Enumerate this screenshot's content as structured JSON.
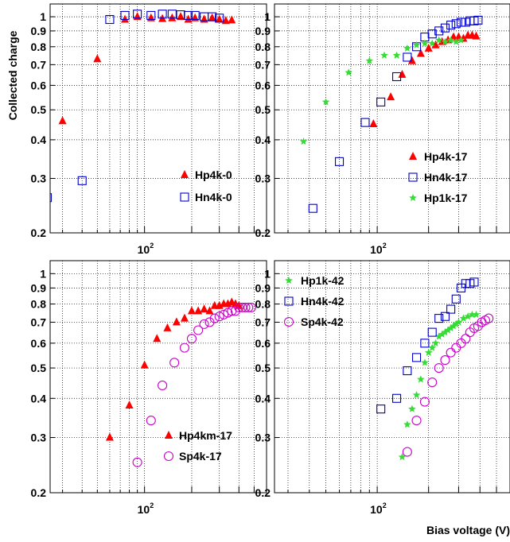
{
  "figure": {
    "ylabel": "Collected charge",
    "xlabel": "Bias voltage (V)"
  },
  "chart_data": [
    {
      "type": "scatter",
      "panel": "top-left",
      "xscale": "log",
      "yscale": "log",
      "xlim": [
        25,
        600
      ],
      "ylim": [
        0.2,
        1.1
      ],
      "grid": true,
      "legend": "bottom-right",
      "x_tick_labels": [
        {
          "base": "10",
          "exp": "2",
          "value": 100
        }
      ],
      "y_tick_labels": [
        "0.2",
        "0.3",
        "0.4",
        "0.5",
        "0.6",
        "0.7",
        "0.8",
        "0.9",
        "1"
      ],
      "series": [
        {
          "name": "Hp4k-0",
          "marker": "triangle",
          "color": "#ff0000",
          "x": [
            30,
            50,
            75,
            90,
            110,
            130,
            150,
            170,
            190,
            210,
            240,
            270,
            300,
            330,
            360
          ],
          "y": [
            0.46,
            0.73,
            0.98,
            1.0,
            0.99,
            0.985,
            0.99,
            1.0,
            0.98,
            0.99,
            0.98,
            0.99,
            0.98,
            0.97,
            0.975
          ]
        },
        {
          "name": "Hn4k-0",
          "marker": "square-open",
          "color": "#0000cc",
          "x": [
            24,
            40,
            60,
            75,
            90,
            110,
            130,
            150,
            170,
            190,
            210,
            240,
            270,
            300
          ],
          "y": [
            0.26,
            0.295,
            0.98,
            1.01,
            1.02,
            1.01,
            1.02,
            1.02,
            1.015,
            1.01,
            1.01,
            1.0,
            1.0,
            0.99
          ]
        }
      ]
    },
    {
      "type": "scatter",
      "panel": "top-right",
      "xscale": "log",
      "yscale": "log",
      "xlim": [
        25,
        600
      ],
      "ylim": [
        0.2,
        1.1
      ],
      "grid": true,
      "legend": "bottom-right",
      "x_tick_labels": [
        {
          "base": "10",
          "exp": "2",
          "value": 100
        }
      ],
      "y_tick_labels": [
        "0.2",
        "0.3",
        "0.4",
        "0.5",
        "0.6",
        "0.7",
        "0.8",
        "0.9",
        "1"
      ],
      "series": [
        {
          "name": "Hp4k-17",
          "marker": "triangle",
          "color": "#ff0000",
          "x": [
            95,
            120,
            140,
            160,
            180,
            200,
            220,
            240,
            260,
            280,
            300,
            320,
            340,
            360,
            380
          ],
          "y": [
            0.45,
            0.55,
            0.65,
            0.72,
            0.76,
            0.79,
            0.81,
            0.83,
            0.84,
            0.86,
            0.86,
            0.85,
            0.87,
            0.87,
            0.865
          ]
        },
        {
          "name": "Hn4k-17",
          "marker": "square-open",
          "color": "#0000cc",
          "x": [
            42,
            60,
            85,
            105,
            130,
            150,
            170,
            190,
            210,
            230,
            250,
            270,
            290,
            310,
            330,
            350,
            370,
            390
          ],
          "y": [
            0.24,
            0.34,
            0.455,
            0.53,
            0.64,
            0.74,
            0.8,
            0.86,
            0.88,
            0.9,
            0.92,
            0.94,
            0.95,
            0.96,
            0.96,
            0.97,
            0.97,
            0.975
          ]
        },
        {
          "name": "Hp1k-17",
          "marker": "star",
          "color": "#33dd33",
          "x": [
            37,
            50,
            68,
            90,
            110,
            130,
            150,
            170,
            190,
            210,
            230,
            250,
            270,
            290,
            310
          ],
          "y": [
            0.395,
            0.53,
            0.66,
            0.72,
            0.75,
            0.75,
            0.79,
            0.81,
            0.82,
            0.82,
            0.84,
            0.83,
            0.84,
            0.83,
            0.84
          ]
        }
      ]
    },
    {
      "type": "scatter",
      "panel": "bottom-left",
      "xscale": "log",
      "yscale": "log",
      "xlim": [
        25,
        600
      ],
      "ylim": [
        0.2,
        1.1
      ],
      "grid": true,
      "legend": "bottom-right",
      "x_tick_labels": [
        {
          "base": "10",
          "exp": "2",
          "value": 100
        }
      ],
      "y_tick_labels": [
        "0.2",
        "0.3",
        "0.4",
        "0.5",
        "0.6",
        "0.7",
        "0.8",
        "0.9",
        "1"
      ],
      "series": [
        {
          "name": "Hp4km-17",
          "marker": "triangle",
          "color": "#ff0000",
          "x": [
            60,
            80,
            100,
            120,
            140,
            160,
            180,
            200,
            220,
            240,
            260,
            280,
            300,
            320,
            340,
            360,
            380,
            400
          ],
          "y": [
            0.3,
            0.38,
            0.51,
            0.62,
            0.67,
            0.7,
            0.72,
            0.76,
            0.76,
            0.77,
            0.76,
            0.79,
            0.79,
            0.8,
            0.8,
            0.81,
            0.8,
            0.79
          ]
        },
        {
          "name": "Sp4k-17",
          "marker": "circle-open",
          "color": "#cc00cc",
          "x": [
            90,
            110,
            130,
            155,
            180,
            200,
            220,
            240,
            260,
            280,
            300,
            320,
            340,
            360,
            380,
            400,
            420,
            440,
            460,
            480
          ],
          "y": [
            0.25,
            0.34,
            0.44,
            0.52,
            0.58,
            0.62,
            0.66,
            0.69,
            0.7,
            0.72,
            0.73,
            0.74,
            0.75,
            0.76,
            0.76,
            0.78,
            0.78,
            0.78,
            0.78,
            0.78
          ]
        }
      ]
    },
    {
      "type": "scatter",
      "panel": "bottom-right",
      "xscale": "log",
      "yscale": "log",
      "xlim": [
        25,
        600
      ],
      "ylim": [
        0.2,
        1.1
      ],
      "grid": true,
      "legend": "top-left",
      "x_tick_labels": [
        {
          "base": "10",
          "exp": "2",
          "value": 100
        }
      ],
      "y_tick_labels": [
        "0.2",
        "0.3",
        "0.4",
        "0.5",
        "0.6",
        "0.7",
        "0.8",
        "0.9",
        "1"
      ],
      "series": [
        {
          "name": "Hp1k-42",
          "marker": "star",
          "color": "#33dd33",
          "x": [
            140,
            150,
            160,
            170,
            180,
            190,
            200,
            210,
            220,
            230,
            240,
            250,
            260,
            270,
            280,
            290,
            300,
            320,
            340,
            360,
            380
          ],
          "y": [
            0.26,
            0.33,
            0.37,
            0.41,
            0.46,
            0.52,
            0.56,
            0.58,
            0.6,
            0.63,
            0.64,
            0.65,
            0.66,
            0.67,
            0.68,
            0.69,
            0.7,
            0.72,
            0.73,
            0.74,
            0.74
          ]
        },
        {
          "name": "Hn4k-42",
          "marker": "square-open",
          "color": "#0000cc",
          "x": [
            105,
            130,
            150,
            170,
            190,
            210,
            230,
            250,
            270,
            290,
            310,
            330,
            350,
            370
          ],
          "y": [
            0.37,
            0.4,
            0.49,
            0.54,
            0.6,
            0.65,
            0.72,
            0.73,
            0.77,
            0.83,
            0.9,
            0.93,
            0.93,
            0.94
          ]
        },
        {
          "name": "Sp4k-42",
          "marker": "circle-open",
          "color": "#cc00cc",
          "x": [
            150,
            170,
            190,
            210,
            230,
            250,
            270,
            290,
            310,
            330,
            350,
            370,
            390,
            410,
            430,
            450
          ],
          "y": [
            0.27,
            0.34,
            0.39,
            0.45,
            0.5,
            0.53,
            0.56,
            0.58,
            0.6,
            0.62,
            0.65,
            0.67,
            0.68,
            0.7,
            0.71,
            0.72
          ]
        }
      ]
    }
  ]
}
